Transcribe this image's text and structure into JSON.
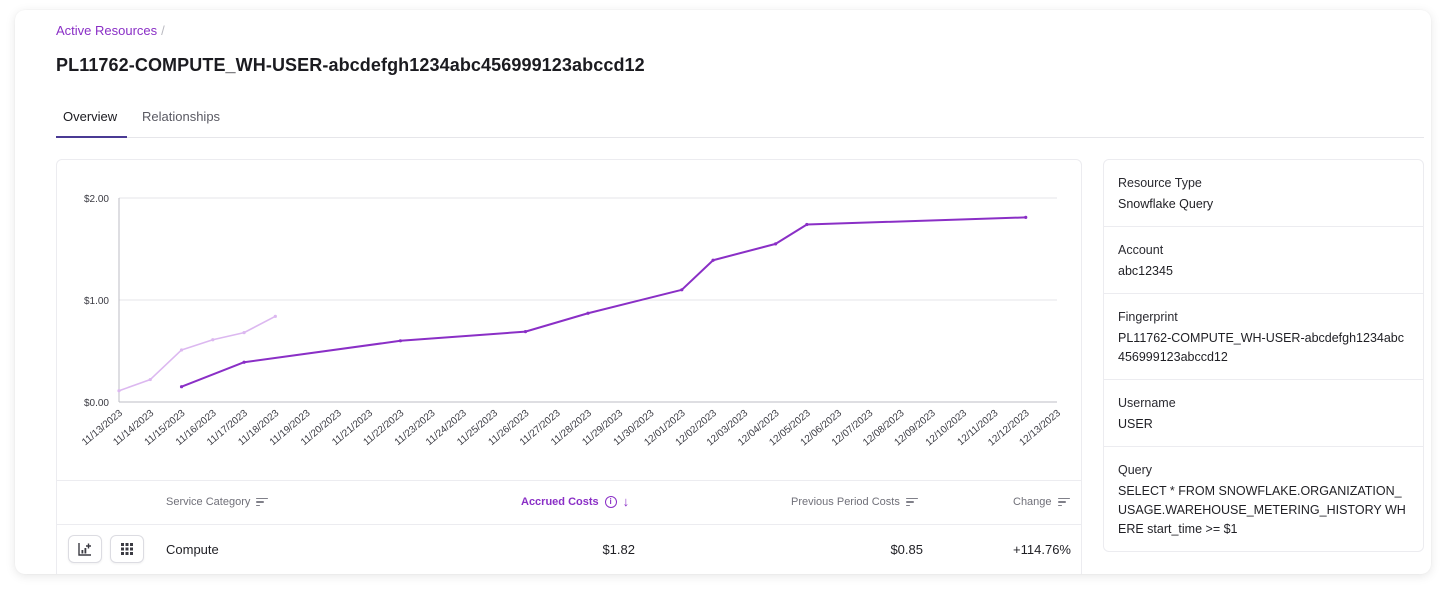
{
  "breadcrumb": {
    "parent": "Active Resources",
    "separator": "/"
  },
  "title": "PL11762-COMPUTE_WH-USER-abcdefgh1234abc456999123abccd12",
  "tabs": [
    {
      "label": "Overview",
      "active": true
    },
    {
      "label": "Relationships",
      "active": false
    }
  ],
  "colors": {
    "accent": "#8a2fc6",
    "current_line": "#8a2fc6",
    "previous_line": "#dcb8f0"
  },
  "chart_data": {
    "type": "line",
    "x": [
      "11/13/2023",
      "11/14/2023",
      "11/15/2023",
      "11/16/2023",
      "11/17/2023",
      "11/18/2023",
      "11/19/2023",
      "11/20/2023",
      "11/21/2023",
      "11/22/2023",
      "11/23/2023",
      "11/24/2023",
      "11/25/2023",
      "11/26/2023",
      "11/27/2023",
      "11/28/2023",
      "11/29/2023",
      "11/30/2023",
      "12/01/2023",
      "12/02/2023",
      "12/03/2023",
      "12/04/2023",
      "12/05/2023",
      "12/06/2023",
      "12/07/2023",
      "12/08/2023",
      "12/09/2023",
      "12/10/2023",
      "12/11/2023",
      "12/12/2023",
      "12/13/2023"
    ],
    "y_ticks": [
      "$0.00",
      "$1.00",
      "$2.00"
    ],
    "ylim": [
      0,
      2
    ],
    "grid": true,
    "series": [
      {
        "style": "previous",
        "points": [
          [
            0,
            0.11
          ],
          [
            1,
            0.22
          ],
          [
            2,
            0.51
          ],
          [
            3,
            0.61
          ],
          [
            4,
            0.68
          ],
          [
            5,
            0.84
          ]
        ]
      },
      {
        "style": "current",
        "points": [
          [
            2,
            0.15
          ],
          [
            4,
            0.39
          ],
          [
            9,
            0.6
          ],
          [
            13,
            0.69
          ],
          [
            15,
            0.87
          ],
          [
            18,
            1.1
          ],
          [
            19,
            1.39
          ],
          [
            21,
            1.55
          ],
          [
            22,
            1.74
          ],
          [
            29,
            1.81
          ]
        ]
      }
    ]
  },
  "table": {
    "headers": {
      "category": "Service Category",
      "accrued": "Accrued Costs",
      "previous": "Previous Period Costs",
      "change": "Change"
    },
    "rows": [
      {
        "category": "Compute",
        "accrued": "$1.82",
        "previous": "$0.85",
        "change": "+114.76%"
      }
    ]
  },
  "details": [
    {
      "label": "Resource Type",
      "value": "Snowflake Query"
    },
    {
      "label": "Account",
      "value": "abc12345"
    },
    {
      "label": "Fingerprint",
      "value": "PL11762-COMPUTE_WH-USER-abcdefgh1234abc456999123abccd12"
    },
    {
      "label": "Username",
      "value": "USER"
    },
    {
      "label": "Query",
      "value": "SELECT * FROM SNOWFLAKE.ORGANIZATION_USAGE.WAREHOUSE_METERING_HISTORY WHERE start_time >= $1"
    }
  ]
}
